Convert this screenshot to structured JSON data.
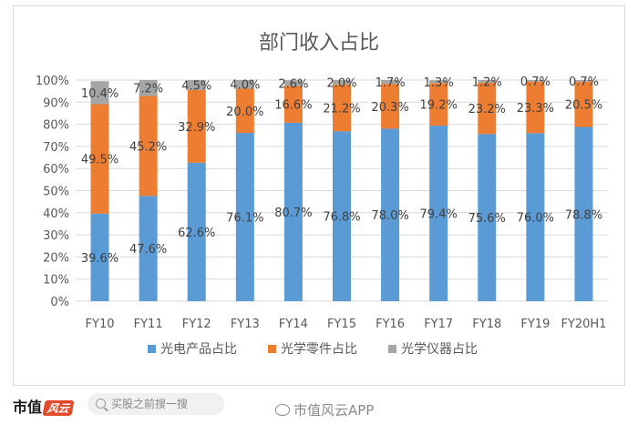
{
  "chart_data": {
    "type": "bar",
    "stacked": true,
    "title": "部门收入占比",
    "categories": [
      "FY10",
      "FY11",
      "FY12",
      "FY13",
      "FY14",
      "FY15",
      "FY16",
      "FY17",
      "FY18",
      "FY19",
      "FY20H1"
    ],
    "series": [
      {
        "name": "光电产品占比",
        "color": "#5b9bd5",
        "values": [
          39.6,
          47.6,
          62.6,
          76.1,
          80.7,
          76.8,
          78.0,
          79.4,
          75.6,
          76.0,
          78.8
        ],
        "labels": [
          "39.6%",
          "47.6%",
          "62.6%",
          "76.1%",
          "80.7%",
          "76.8%",
          "78.0%",
          "79.4%",
          "75.6%",
          "76.0%",
          "78.8%"
        ]
      },
      {
        "name": "光学零件占比",
        "color": "#ed7d31",
        "values": [
          49.5,
          45.2,
          32.9,
          20.0,
          16.6,
          21.2,
          20.3,
          19.2,
          23.2,
          23.3,
          20.5
        ],
        "labels": [
          "49.5%",
          "45.2%",
          "32.9%",
          "20.0%",
          "16.6%",
          "21.2%",
          "20.3%",
          "19.2%",
          "23.2%",
          "23.3%",
          "20.5%"
        ]
      },
      {
        "name": "光学仪器占比",
        "color": "#a5a5a5",
        "values": [
          10.4,
          7.2,
          4.5,
          4.0,
          2.6,
          2.0,
          1.7,
          1.3,
          1.2,
          0.7,
          0.7
        ],
        "labels": [
          "10.4%",
          "7.2%",
          "4.5%",
          "4.0%",
          "2.6%",
          "2.0%",
          "1.7%",
          "1.3%",
          "1.2%",
          "0.7%",
          "0.7%"
        ]
      }
    ],
    "ylim": [
      0,
      100
    ],
    "yticks": [
      0,
      10,
      20,
      30,
      40,
      50,
      60,
      70,
      80,
      90,
      100
    ],
    "ytick_labels": [
      "0%",
      "10%",
      "20%",
      "30%",
      "40%",
      "50%",
      "60%",
      "70%",
      "80%",
      "90%",
      "100%"
    ],
    "xlabel": "",
    "ylabel": "",
    "grid": true,
    "legend_position": "bottom"
  },
  "footer": {
    "brand_main": "市值",
    "brand_mark": "风云",
    "search_placeholder": "买股之前搜一搜",
    "watermark": "市值风云APP"
  },
  "colors": {
    "grid": "#d9d9d9",
    "axis_text": "#595959",
    "label_text": "#404040",
    "title_text": "#595959"
  }
}
